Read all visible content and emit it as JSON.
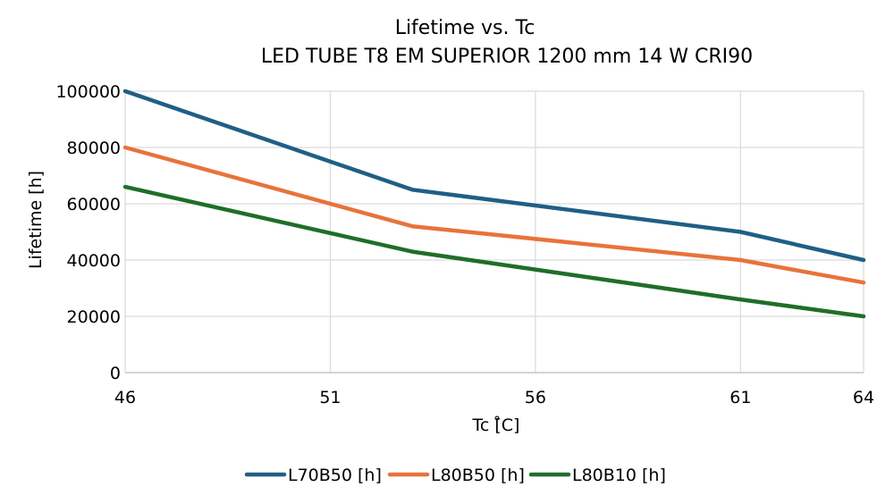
{
  "chart_data": {
    "type": "line",
    "title": "Lifetime vs. Tc",
    "subtitle": "LED TUBE T8 EM SUPERIOR 1200 mm 14 W CRI90",
    "xlabel": "Tc [̊C]",
    "ylabel": "Lifetime [h]",
    "x_ticks": [
      46,
      51,
      56,
      61,
      64
    ],
    "y_ticks": [
      0,
      20000,
      40000,
      60000,
      80000,
      100000
    ],
    "xlim": [
      46,
      64
    ],
    "ylim": [
      0,
      100000
    ],
    "grid": true,
    "legend_position": "bottom",
    "series": [
      {
        "name": "L70B50 [h]",
        "color": "#1f5f86",
        "points": [
          [
            46,
            100000
          ],
          [
            53,
            65000
          ],
          [
            61,
            50000
          ],
          [
            64,
            40000
          ]
        ]
      },
      {
        "name": "L80B50 [h]",
        "color": "#e8733a",
        "points": [
          [
            46,
            80000
          ],
          [
            53,
            52000
          ],
          [
            61,
            40000
          ],
          [
            64,
            32000
          ]
        ]
      },
      {
        "name": "L80B10 [h]",
        "color": "#1f6e2a",
        "points": [
          [
            46,
            66000
          ],
          [
            53,
            43000
          ],
          [
            61,
            26000
          ],
          [
            64,
            20000
          ]
        ]
      }
    ]
  }
}
